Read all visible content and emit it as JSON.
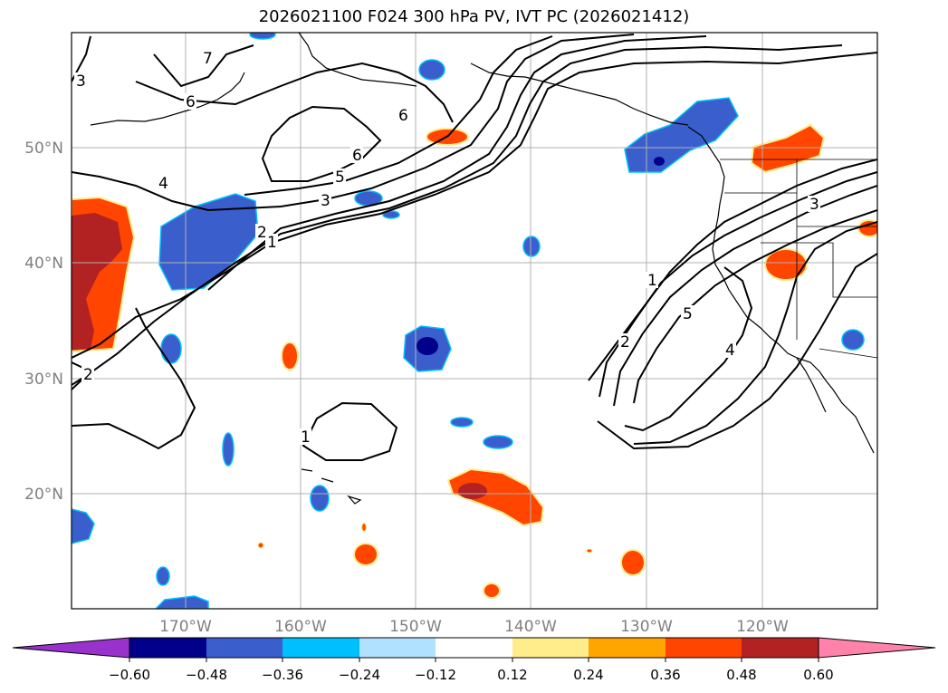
{
  "title": "2026021100 F024 300 hPa PV, IVT PC (2026021412)",
  "map": {
    "lat_labels": [
      "50°N",
      "40°N",
      "30°N",
      "20°N"
    ],
    "lon_labels": [
      "170°W",
      "160°W",
      "150°W",
      "140°W",
      "130°W",
      "120°W"
    ],
    "contour_labels": [
      "1",
      "2",
      "3",
      "4",
      "5",
      "6",
      "7"
    ]
  },
  "colorbar": {
    "ticks": [
      "−0.60",
      "−0.48",
      "−0.36",
      "−0.24",
      "−0.12",
      "0.12",
      "0.24",
      "0.36",
      "0.48",
      "0.60"
    ],
    "colors": [
      "#9932cc",
      "#00008b",
      "#3a5fcd",
      "#00bfff",
      "#b0e2ff",
      "#ffffff",
      "#ffec8b",
      "#ffa500",
      "#ff4500",
      "#b22222",
      "#ff82ab"
    ]
  }
}
